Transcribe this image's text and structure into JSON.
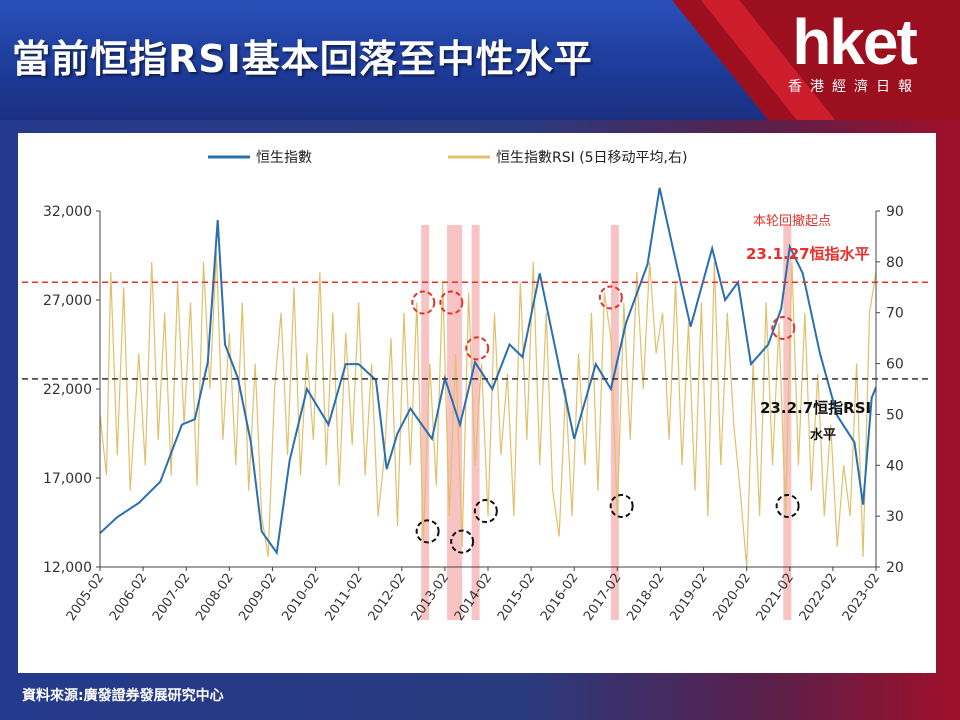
{
  "header": {
    "title": "當前恒指RSI基本回落至中性水平",
    "logo_text": "hket",
    "logo_subtitle": "香港經濟日報"
  },
  "footer": {
    "source": "資料來源:廣發證券發展研究中心"
  },
  "colors": {
    "index_line": "#2a6fb0",
    "rsi_line": "#e0c06a",
    "red_ref": "#e8302a",
    "black_ref": "#333333",
    "highlight": "#f7b8b8"
  },
  "chart_data": {
    "type": "line",
    "title": "",
    "legend": [
      "恒生指數",
      "恒生指數RSI (5日移动平均,右)"
    ],
    "x_ticks": [
      "2005-02",
      "2006-02",
      "2007-02",
      "2008-02",
      "2009-02",
      "2010-02",
      "2011-02",
      "2012-02",
      "2013-02",
      "2014-02",
      "2015-02",
      "2016-02",
      "2017-02",
      "2018-02",
      "2019-02",
      "2020-02",
      "2021-02",
      "2022-02",
      "2023-02"
    ],
    "y_left": {
      "ticks": [
        "12,000",
        "17,000",
        "22,000",
        "27,000",
        "32,000"
      ],
      "range": [
        12000,
        32000
      ]
    },
    "y_right": {
      "ticks": [
        "20",
        "30",
        "40",
        "50",
        "60",
        "70",
        "80",
        "90"
      ],
      "range": [
        20,
        90
      ]
    },
    "reference_lines": [
      {
        "axis": "right",
        "value": 76,
        "style": "red-dashed"
      },
      {
        "axis": "right",
        "value": 57,
        "style": "black-dashed"
      }
    ],
    "highlight_periods": [
      {
        "start": 2012.55,
        "end": 2012.72
      },
      {
        "start": 2013.15,
        "end": 2013.5
      },
      {
        "start": 2013.72,
        "end": 2013.87
      },
      {
        "start": 2016.95,
        "end": 2017.12
      },
      {
        "start": 2020.95,
        "end": 2021.05
      }
    ],
    "circles": [
      {
        "x": 2012.6,
        "rsi": 72,
        "color": "red"
      },
      {
        "x": 2013.25,
        "rsi": 72,
        "color": "red"
      },
      {
        "x": 2013.85,
        "rsi": 63,
        "color": "red"
      },
      {
        "x": 2016.95,
        "rsi": 73,
        "color": "red"
      },
      {
        "x": 2020.95,
        "rsi": 67,
        "color": "red"
      },
      {
        "x": 2012.7,
        "rsi": 27,
        "color": "black"
      },
      {
        "x": 2013.5,
        "rsi": 25,
        "color": "black"
      },
      {
        "x": 2014.05,
        "rsi": 31,
        "color": "black"
      },
      {
        "x": 2017.2,
        "rsi": 32,
        "color": "black"
      },
      {
        "x": 2021.05,
        "rsi": 32,
        "color": "black"
      }
    ],
    "annotations": [
      {
        "text": "本轮回撤起点",
        "color": "red"
      },
      {
        "text": "23.1.27恒指水平",
        "color": "red"
      },
      {
        "text": "23.2.7恒指RSI",
        "color": "black"
      },
      {
        "text": "水平",
        "color": "black"
      }
    ],
    "series": [
      {
        "name": "恒生指數",
        "axis": "left",
        "x": [
          2005.1,
          2005.5,
          2006.0,
          2006.5,
          2007.0,
          2007.3,
          2007.6,
          2007.83,
          2008.0,
          2008.3,
          2008.6,
          2008.85,
          2009.2,
          2009.5,
          2009.9,
          2010.4,
          2010.8,
          2011.1,
          2011.5,
          2011.75,
          2012.0,
          2012.3,
          2012.8,
          2013.1,
          2013.45,
          2013.8,
          2014.2,
          2014.6,
          2014.9,
          2015.3,
          2015.6,
          2015.9,
          2016.1,
          2016.6,
          2016.95,
          2017.3,
          2017.8,
          2018.08,
          2018.4,
          2018.8,
          2019.3,
          2019.6,
          2019.9,
          2020.2,
          2020.6,
          2020.9,
          2021.1,
          2021.4,
          2021.8,
          2022.2,
          2022.6,
          2022.8,
          2023.0,
          2023.1
        ],
        "values": [
          13900,
          14800,
          15600,
          16800,
          20000,
          20300,
          23500,
          31500,
          24500,
          22600,
          19000,
          14000,
          12800,
          18000,
          22000,
          20000,
          23400,
          23400,
          22500,
          17500,
          19500,
          20900,
          19200,
          22600,
          20000,
          23500,
          22000,
          24500,
          23800,
          28500,
          25000,
          21500,
          19200,
          23400,
          22000,
          25700,
          29000,
          33300,
          29800,
          25500,
          29900,
          27000,
          28000,
          23400,
          24500,
          26500,
          30000,
          28500,
          24000,
          20500,
          19000,
          15500,
          21500,
          22100
        ]
      },
      {
        "name": "恒生指數RSI (5日移动平均,右)",
        "axis": "right",
        "x": [
          2005.1,
          2005.25,
          2005.35,
          2005.5,
          2005.65,
          2005.8,
          2006.0,
          2006.15,
          2006.3,
          2006.45,
          2006.6,
          2006.75,
          2006.9,
          2007.05,
          2007.2,
          2007.35,
          2007.5,
          2007.65,
          2007.8,
          2007.95,
          2008.1,
          2008.25,
          2008.4,
          2008.55,
          2008.7,
          2008.85,
          2009.0,
          2009.15,
          2009.3,
          2009.45,
          2009.6,
          2009.75,
          2009.9,
          2010.05,
          2010.2,
          2010.35,
          2010.5,
          2010.65,
          2010.8,
          2010.95,
          2011.1,
          2011.25,
          2011.4,
          2011.55,
          2011.7,
          2011.85,
          2012.0,
          2012.15,
          2012.3,
          2012.45,
          2012.6,
          2012.75,
          2012.9,
          2013.05,
          2013.2,
          2013.35,
          2013.5,
          2013.65,
          2013.8,
          2013.95,
          2014.1,
          2014.25,
          2014.4,
          2014.55,
          2014.7,
          2014.85,
          2015.0,
          2015.15,
          2015.3,
          2015.45,
          2015.6,
          2015.75,
          2015.9,
          2016.05,
          2016.2,
          2016.35,
          2016.5,
          2016.65,
          2016.8,
          2016.95,
          2017.1,
          2017.25,
          2017.4,
          2017.55,
          2017.7,
          2017.85,
          2018.0,
          2018.15,
          2018.3,
          2018.45,
          2018.6,
          2018.75,
          2018.9,
          2019.05,
          2019.2,
          2019.35,
          2019.5,
          2019.65,
          2019.8,
          2019.95,
          2020.1,
          2020.25,
          2020.4,
          2020.55,
          2020.7,
          2020.85,
          2021.0,
          2021.15,
          2021.3,
          2021.45,
          2021.6,
          2021.75,
          2021.9,
          2022.05,
          2022.2,
          2022.35,
          2022.5,
          2022.65,
          2022.8,
          2022.95,
          2023.1
        ],
        "values": [
          50,
          38,
          78,
          42,
          75,
          35,
          62,
          40,
          80,
          45,
          70,
          38,
          76,
          48,
          72,
          36,
          80,
          55,
          82,
          45,
          66,
          40,
          72,
          35,
          60,
          30,
          22,
          55,
          70,
          42,
          75,
          38,
          62,
          45,
          78,
          40,
          70,
          36,
          66,
          44,
          72,
          38,
          60,
          30,
          42,
          65,
          28,
          70,
          40,
          72,
          25,
          60,
          36,
          76,
          30,
          62,
          24,
          74,
          40,
          60,
          30,
          70,
          42,
          58,
          30,
          76,
          45,
          80,
          40,
          70,
          35,
          26,
          55,
          30,
          62,
          40,
          70,
          35,
          74,
          65,
          30,
          72,
          45,
          78,
          55,
          80,
          62,
          70,
          45,
          76,
          40,
          68,
          35,
          72,
          30,
          80,
          40,
          70,
          48,
          35,
          20,
          60,
          30,
          72,
          40,
          68,
          30,
          80,
          40,
          70,
          35,
          58,
          30,
          48,
          24,
          40,
          30,
          60,
          22,
          70,
          78
        ]
      }
    ]
  }
}
